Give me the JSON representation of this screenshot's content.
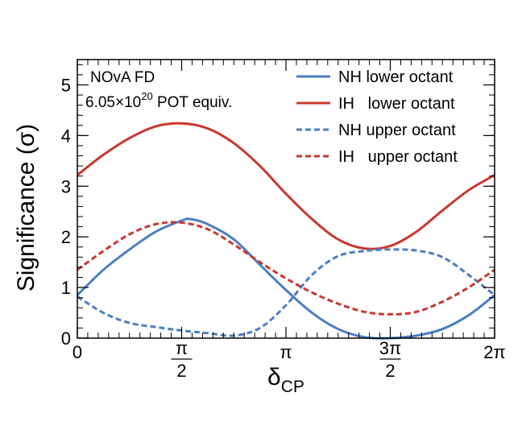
{
  "chart_data": {
    "type": "line",
    "title": "",
    "xlabel": "δCP",
    "xlabel_main": "δ",
    "xlabel_sub": "CP",
    "ylabel": "Significance (σ)",
    "xlim": [
      0,
      6.283185
    ],
    "ylim": [
      0,
      5.5
    ],
    "x_ticks": [
      {
        "value": 0,
        "label": "0"
      },
      {
        "value": 1.570796,
        "label_num": "π",
        "label_den": "2"
      },
      {
        "value": 3.141593,
        "label": "π"
      },
      {
        "value": 4.712389,
        "label_num": "3π",
        "label_den": "2"
      },
      {
        "value": 6.283185,
        "label": "2π"
      }
    ],
    "y_ticks": [
      0,
      1,
      2,
      3,
      4,
      5
    ],
    "info_lines": {
      "line1": "NOvA FD",
      "line2_prefix": "6.05×10",
      "line2_exp": "20",
      "line2_suffix": " POT equiv."
    },
    "legend_position": "top-right",
    "series": [
      {
        "name": "NH lower octant",
        "color": "#4a7fc1",
        "style": "solid",
        "x": [
          0,
          0.3927,
          0.7854,
          1.1781,
          1.5708,
          1.7,
          1.9635,
          2.3562,
          2.7489,
          3.1416,
          3.5343,
          3.927,
          4.3197,
          4.7124,
          5.1051,
          5.4978,
          5.8905,
          6.2832
        ],
        "y": [
          0.85,
          1.35,
          1.75,
          2.1,
          2.32,
          2.35,
          2.25,
          1.95,
          1.45,
          0.95,
          0.5,
          0.18,
          0.02,
          0.0,
          0.05,
          0.18,
          0.45,
          0.85
        ]
      },
      {
        "name": "IH   lower octant",
        "color": "#c8372d",
        "style": "solid",
        "x": [
          0,
          0.3927,
          0.7854,
          1.1781,
          1.5708,
          1.9635,
          2.3562,
          2.7489,
          3.1416,
          3.5343,
          3.927,
          4.3197,
          4.7124,
          5.1051,
          5.4978,
          5.8905,
          6.2832
        ],
        "y": [
          3.22,
          3.62,
          3.95,
          4.18,
          4.24,
          4.14,
          3.85,
          3.4,
          2.85,
          2.35,
          1.95,
          1.77,
          1.82,
          2.1,
          2.52,
          2.92,
          3.22
        ]
      },
      {
        "name": "NH upper octant",
        "color": "#4a7fc1",
        "style": "dashed",
        "x": [
          0,
          0.3927,
          0.7854,
          1.1781,
          1.5708,
          1.9635,
          2.3562,
          2.7489,
          3.1416,
          3.5343,
          3.927,
          4.3197,
          4.7124,
          5.1051,
          5.4978,
          5.8905,
          6.2832
        ],
        "y": [
          0.82,
          0.5,
          0.3,
          0.22,
          0.15,
          0.1,
          0.05,
          0.2,
          0.65,
          1.25,
          1.62,
          1.72,
          1.75,
          1.73,
          1.6,
          1.25,
          0.85
        ]
      },
      {
        "name": "IH   upper octant",
        "color": "#c8372d",
        "style": "dashed",
        "x": [
          0,
          0.3927,
          0.7854,
          1.1781,
          1.5708,
          1.9635,
          2.3562,
          2.7489,
          3.1416,
          3.5343,
          3.927,
          4.3197,
          4.7124,
          5.1051,
          5.4978,
          5.8905,
          6.2832
        ],
        "y": [
          1.35,
          1.72,
          2.05,
          2.25,
          2.28,
          2.15,
          1.85,
          1.5,
          1.18,
          0.9,
          0.68,
          0.52,
          0.47,
          0.52,
          0.72,
          1.0,
          1.35
        ]
      }
    ]
  }
}
